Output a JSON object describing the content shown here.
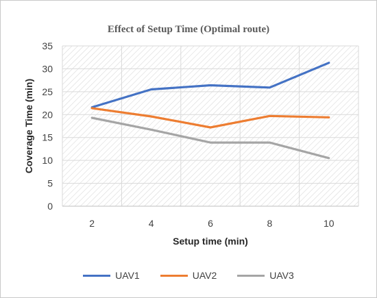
{
  "chart_data": {
    "type": "line",
    "title": "Effect of Setup Time (Optimal route)",
    "xlabel": "Setup time (min)",
    "ylabel": "Coverage Time (min)",
    "categories": [
      "2",
      "4",
      "6",
      "8",
      "10"
    ],
    "ylim": [
      0,
      35
    ],
    "yticks": [
      "0",
      "5",
      "10",
      "15",
      "20",
      "25",
      "30",
      "35"
    ],
    "grid": true,
    "legend_position": "bottom",
    "series": [
      {
        "name": "UAV1",
        "color": "#4472C4",
        "values": [
          21.6,
          25.5,
          26.4,
          25.9,
          31.3
        ]
      },
      {
        "name": "UAV2",
        "color": "#ED7D31",
        "values": [
          21.4,
          19.6,
          17.2,
          19.7,
          19.4
        ]
      },
      {
        "name": "UAV3",
        "color": "#A5A5A5",
        "values": [
          19.3,
          16.7,
          13.9,
          13.9,
          10.5
        ]
      }
    ]
  }
}
